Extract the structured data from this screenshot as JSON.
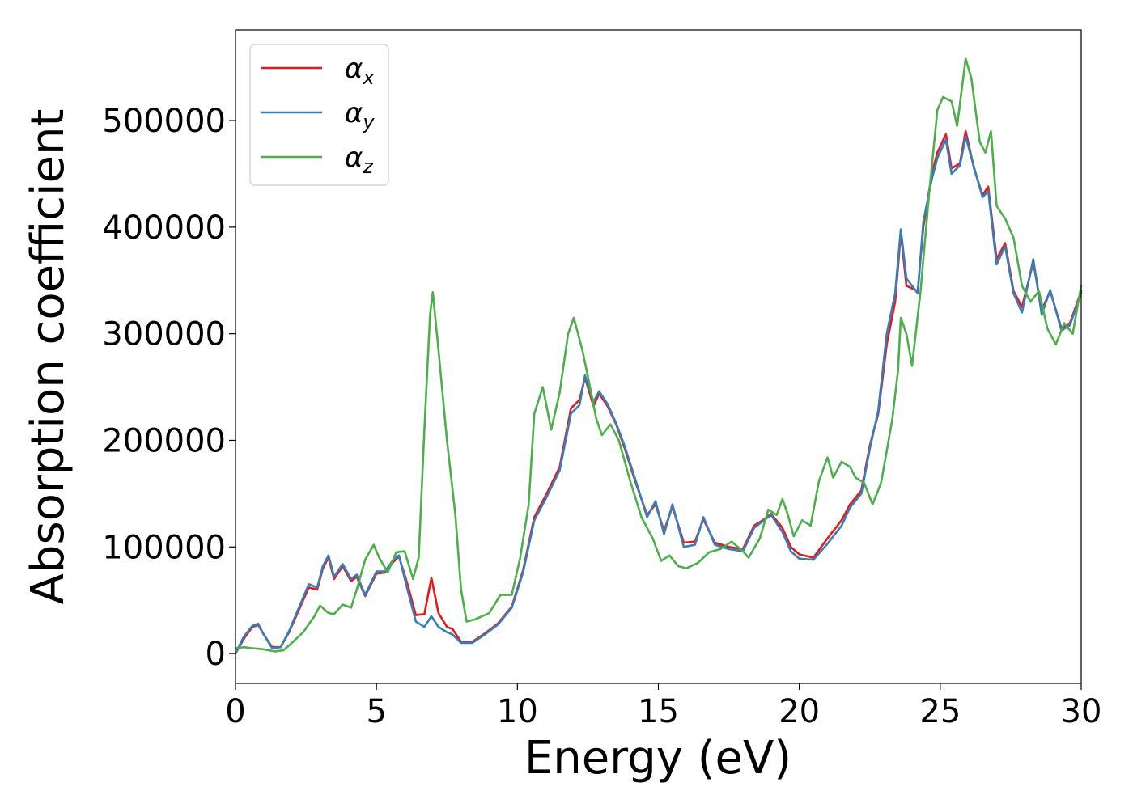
{
  "chart_data": {
    "type": "line",
    "xlabel": "Energy (eV)",
    "ylabel": "Absorption coefficient",
    "xlim": [
      0,
      30
    ],
    "ylim": [
      -28000,
      585000
    ],
    "xticks": [
      0,
      5,
      10,
      15,
      20,
      25,
      30
    ],
    "yticks": [
      0,
      100000,
      200000,
      300000,
      400000,
      500000
    ],
    "xtick_labels": [
      "0",
      "5",
      "10",
      "15",
      "20",
      "25",
      "30"
    ],
    "ytick_labels": [
      "0",
      "100000",
      "200000",
      "300000",
      "400000",
      "500000"
    ],
    "grid": false,
    "legend_position": "top-left",
    "series": [
      {
        "name": "α_x",
        "label_main": "α",
        "label_sub": "x",
        "color": "#e41a1c",
        "points": [
          [
            0,
            0
          ],
          [
            0.3,
            14000
          ],
          [
            0.6,
            25000
          ],
          [
            0.8,
            27000
          ],
          [
            1.0,
            18000
          ],
          [
            1.3,
            6000
          ],
          [
            1.6,
            6000
          ],
          [
            1.9,
            20000
          ],
          [
            2.2,
            38000
          ],
          [
            2.6,
            62000
          ],
          [
            2.9,
            60000
          ],
          [
            3.1,
            80000
          ],
          [
            3.3,
            90000
          ],
          [
            3.5,
            70000
          ],
          [
            3.8,
            82000
          ],
          [
            4.1,
            68000
          ],
          [
            4.3,
            72000
          ],
          [
            4.6,
            54000
          ],
          [
            5.0,
            75000
          ],
          [
            5.3,
            76000
          ],
          [
            5.6,
            86000
          ],
          [
            5.8,
            91000
          ],
          [
            6.1,
            65000
          ],
          [
            6.4,
            36000
          ],
          [
            6.7,
            37000
          ],
          [
            6.95,
            71000
          ],
          [
            7.2,
            38000
          ],
          [
            7.5,
            25000
          ],
          [
            7.7,
            23000
          ],
          [
            8.0,
            11000
          ],
          [
            8.4,
            11000
          ],
          [
            8.8,
            18000
          ],
          [
            9.3,
            28000
          ],
          [
            9.8,
            44000
          ],
          [
            10.2,
            78000
          ],
          [
            10.6,
            128000
          ],
          [
            11.0,
            148000
          ],
          [
            11.5,
            175000
          ],
          [
            11.9,
            230000
          ],
          [
            12.2,
            238000
          ],
          [
            12.4,
            259000
          ],
          [
            12.7,
            232000
          ],
          [
            12.9,
            244000
          ],
          [
            13.2,
            232000
          ],
          [
            13.5,
            215000
          ],
          [
            13.8,
            193000
          ],
          [
            14.2,
            160000
          ],
          [
            14.6,
            130000
          ],
          [
            14.9,
            140000
          ],
          [
            15.2,
            115000
          ],
          [
            15.5,
            138000
          ],
          [
            15.9,
            104000
          ],
          [
            16.3,
            105000
          ],
          [
            16.6,
            126000
          ],
          [
            17.0,
            104000
          ],
          [
            17.5,
            100000
          ],
          [
            18.0,
            98000
          ],
          [
            18.4,
            120000
          ],
          [
            18.7,
            125000
          ],
          [
            19.0,
            131000
          ],
          [
            19.4,
            118000
          ],
          [
            19.7,
            100000
          ],
          [
            20.0,
            93000
          ],
          [
            20.5,
            90000
          ],
          [
            21.0,
            108000
          ],
          [
            21.5,
            125000
          ],
          [
            21.8,
            140000
          ],
          [
            22.2,
            153000
          ],
          [
            22.5,
            195000
          ],
          [
            22.8,
            225000
          ],
          [
            23.1,
            290000
          ],
          [
            23.4,
            330000
          ],
          [
            23.6,
            395000
          ],
          [
            23.8,
            345000
          ],
          [
            24.2,
            340000
          ],
          [
            24.4,
            400000
          ],
          [
            24.7,
            450000
          ],
          [
            24.9,
            470000
          ],
          [
            25.2,
            487000
          ],
          [
            25.4,
            455000
          ],
          [
            25.7,
            460000
          ],
          [
            25.9,
            490000
          ],
          [
            26.2,
            455000
          ],
          [
            26.5,
            430000
          ],
          [
            26.7,
            438000
          ],
          [
            27.0,
            370000
          ],
          [
            27.3,
            385000
          ],
          [
            27.6,
            340000
          ],
          [
            27.9,
            325000
          ],
          [
            28.3,
            367000
          ],
          [
            28.6,
            322000
          ],
          [
            28.9,
            340000
          ],
          [
            29.3,
            305000
          ],
          [
            29.6,
            310000
          ],
          [
            30,
            340000
          ]
        ]
      },
      {
        "name": "α_y",
        "label_main": "α",
        "label_sub": "y",
        "color": "#377eb8",
        "points": [
          [
            0,
            0
          ],
          [
            0.3,
            16000
          ],
          [
            0.6,
            26000
          ],
          [
            0.8,
            28000
          ],
          [
            1.0,
            18000
          ],
          [
            1.3,
            5000
          ],
          [
            1.6,
            6000
          ],
          [
            1.9,
            21000
          ],
          [
            2.2,
            40000
          ],
          [
            2.6,
            65000
          ],
          [
            2.9,
            62000
          ],
          [
            3.1,
            82000
          ],
          [
            3.3,
            92000
          ],
          [
            3.5,
            72000
          ],
          [
            3.8,
            84000
          ],
          [
            4.1,
            70000
          ],
          [
            4.3,
            74000
          ],
          [
            4.6,
            55000
          ],
          [
            5.0,
            77000
          ],
          [
            5.3,
            77000
          ],
          [
            5.6,
            88000
          ],
          [
            5.8,
            92000
          ],
          [
            6.1,
            60000
          ],
          [
            6.4,
            30000
          ],
          [
            6.7,
            25000
          ],
          [
            6.95,
            35000
          ],
          [
            7.2,
            25000
          ],
          [
            7.5,
            20000
          ],
          [
            7.7,
            18000
          ],
          [
            8.0,
            10000
          ],
          [
            8.4,
            10000
          ],
          [
            8.8,
            17000
          ],
          [
            9.3,
            27000
          ],
          [
            9.8,
            43000
          ],
          [
            10.2,
            76000
          ],
          [
            10.6,
            125000
          ],
          [
            11.0,
            145000
          ],
          [
            11.5,
            172000
          ],
          [
            11.9,
            225000
          ],
          [
            12.2,
            233000
          ],
          [
            12.4,
            261000
          ],
          [
            12.7,
            236000
          ],
          [
            12.9,
            246000
          ],
          [
            13.2,
            234000
          ],
          [
            13.5,
            216000
          ],
          [
            13.8,
            195000
          ],
          [
            14.2,
            162000
          ],
          [
            14.6,
            128000
          ],
          [
            14.9,
            143000
          ],
          [
            15.2,
            112000
          ],
          [
            15.5,
            140000
          ],
          [
            15.9,
            100000
          ],
          [
            16.3,
            102000
          ],
          [
            16.6,
            128000
          ],
          [
            17.0,
            102000
          ],
          [
            17.5,
            98000
          ],
          [
            18.0,
            96000
          ],
          [
            18.4,
            118000
          ],
          [
            18.7,
            124000
          ],
          [
            19.0,
            130000
          ],
          [
            19.4,
            114000
          ],
          [
            19.7,
            96000
          ],
          [
            20.0,
            89000
          ],
          [
            20.5,
            88000
          ],
          [
            21.0,
            103000
          ],
          [
            21.5,
            120000
          ],
          [
            21.8,
            137000
          ],
          [
            22.2,
            150000
          ],
          [
            22.5,
            192000
          ],
          [
            22.8,
            228000
          ],
          [
            23.1,
            300000
          ],
          [
            23.4,
            338000
          ],
          [
            23.6,
            398000
          ],
          [
            23.8,
            352000
          ],
          [
            24.2,
            338000
          ],
          [
            24.4,
            405000
          ],
          [
            24.7,
            445000
          ],
          [
            24.9,
            465000
          ],
          [
            25.2,
            482000
          ],
          [
            25.4,
            450000
          ],
          [
            25.7,
            458000
          ],
          [
            25.9,
            485000
          ],
          [
            26.2,
            456000
          ],
          [
            26.5,
            428000
          ],
          [
            26.7,
            434000
          ],
          [
            27.0,
            365000
          ],
          [
            27.3,
            382000
          ],
          [
            27.6,
            338000
          ],
          [
            27.9,
            320000
          ],
          [
            28.3,
            370000
          ],
          [
            28.6,
            318000
          ],
          [
            28.9,
            341000
          ],
          [
            29.3,
            303000
          ],
          [
            29.6,
            308000
          ],
          [
            30,
            338000
          ]
        ]
      },
      {
        "name": "α_z",
        "label_main": "α",
        "label_sub": "z",
        "color": "#4daf4a",
        "points": [
          [
            0,
            5000
          ],
          [
            0.3,
            6000
          ],
          [
            0.6,
            5000
          ],
          [
            1.0,
            4000
          ],
          [
            1.4,
            2000
          ],
          [
            1.7,
            3000
          ],
          [
            2.0,
            10000
          ],
          [
            2.4,
            20000
          ],
          [
            2.8,
            35000
          ],
          [
            3.0,
            45000
          ],
          [
            3.3,
            38000
          ],
          [
            3.5,
            37000
          ],
          [
            3.8,
            46000
          ],
          [
            4.1,
            43000
          ],
          [
            4.3,
            60000
          ],
          [
            4.6,
            88000
          ],
          [
            4.9,
            102000
          ],
          [
            5.1,
            90000
          ],
          [
            5.4,
            76000
          ],
          [
            5.7,
            95000
          ],
          [
            6.0,
            96000
          ],
          [
            6.3,
            70000
          ],
          [
            6.5,
            90000
          ],
          [
            6.7,
            210000
          ],
          [
            6.9,
            318000
          ],
          [
            7.0,
            339000
          ],
          [
            7.2,
            285000
          ],
          [
            7.5,
            200000
          ],
          [
            7.8,
            130000
          ],
          [
            8.0,
            60000
          ],
          [
            8.2,
            30000
          ],
          [
            8.5,
            32000
          ],
          [
            9.0,
            38000
          ],
          [
            9.4,
            55000
          ],
          [
            9.8,
            55000
          ],
          [
            10.1,
            90000
          ],
          [
            10.4,
            140000
          ],
          [
            10.6,
            225000
          ],
          [
            10.9,
            250000
          ],
          [
            11.2,
            210000
          ],
          [
            11.5,
            245000
          ],
          [
            11.8,
            300000
          ],
          [
            12.0,
            315000
          ],
          [
            12.3,
            285000
          ],
          [
            12.5,
            260000
          ],
          [
            12.8,
            220000
          ],
          [
            13.0,
            205000
          ],
          [
            13.3,
            215000
          ],
          [
            13.6,
            200000
          ],
          [
            14.0,
            162000
          ],
          [
            14.4,
            128000
          ],
          [
            14.8,
            108000
          ],
          [
            15.1,
            87000
          ],
          [
            15.4,
            92000
          ],
          [
            15.7,
            82000
          ],
          [
            16.0,
            80000
          ],
          [
            16.4,
            85000
          ],
          [
            16.8,
            95000
          ],
          [
            17.2,
            98000
          ],
          [
            17.6,
            105000
          ],
          [
            18.0,
            96000
          ],
          [
            18.2,
            90000
          ],
          [
            18.6,
            108000
          ],
          [
            18.9,
            135000
          ],
          [
            19.2,
            130000
          ],
          [
            19.4,
            145000
          ],
          [
            19.6,
            130000
          ],
          [
            19.8,
            110000
          ],
          [
            20.1,
            125000
          ],
          [
            20.4,
            120000
          ],
          [
            20.7,
            162000
          ],
          [
            21.0,
            184000
          ],
          [
            21.2,
            165000
          ],
          [
            21.5,
            180000
          ],
          [
            21.8,
            175000
          ],
          [
            22.0,
            165000
          ],
          [
            22.3,
            160000
          ],
          [
            22.6,
            140000
          ],
          [
            22.9,
            160000
          ],
          [
            23.1,
            190000
          ],
          [
            23.3,
            220000
          ],
          [
            23.5,
            265000
          ],
          [
            23.6,
            315000
          ],
          [
            23.8,
            300000
          ],
          [
            24.0,
            270000
          ],
          [
            24.3,
            340000
          ],
          [
            24.6,
            430000
          ],
          [
            24.9,
            510000
          ],
          [
            25.1,
            522000
          ],
          [
            25.4,
            518000
          ],
          [
            25.6,
            495000
          ],
          [
            25.9,
            558000
          ],
          [
            26.1,
            540000
          ],
          [
            26.4,
            480000
          ],
          [
            26.6,
            470000
          ],
          [
            26.8,
            490000
          ],
          [
            27.0,
            420000
          ],
          [
            27.3,
            408000
          ],
          [
            27.6,
            390000
          ],
          [
            27.9,
            345000
          ],
          [
            28.2,
            330000
          ],
          [
            28.5,
            340000
          ],
          [
            28.8,
            305000
          ],
          [
            29.1,
            290000
          ],
          [
            29.4,
            310000
          ],
          [
            29.7,
            300000
          ],
          [
            30,
            345000
          ]
        ]
      }
    ]
  }
}
